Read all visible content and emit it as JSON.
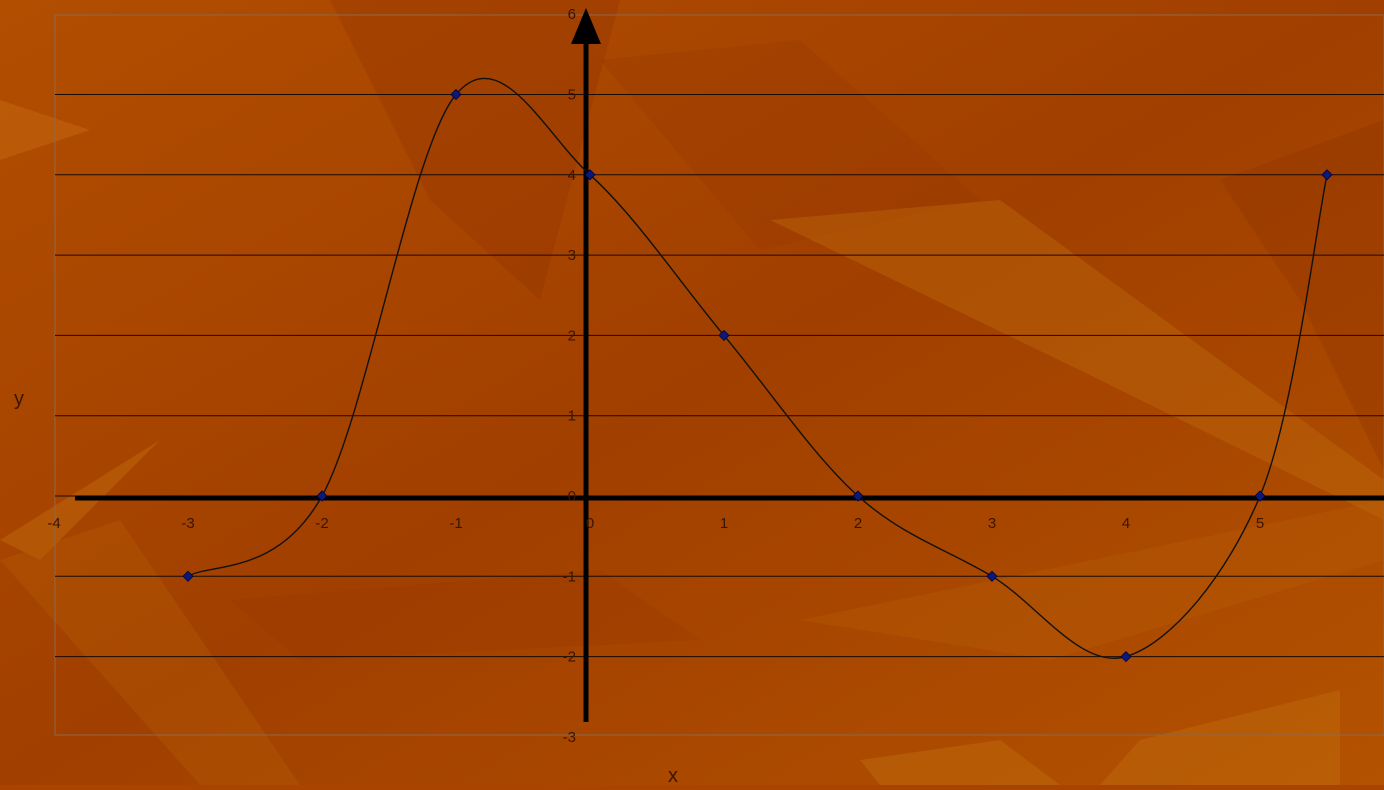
{
  "chart_data": {
    "type": "scatter",
    "title": "",
    "xlabel": "x",
    "ylabel": "y",
    "xlim": [
      -4,
      5.5
    ],
    "ylim": [
      -3,
      6
    ],
    "x_ticks": [
      -4,
      -3,
      -2,
      -1,
      0,
      1,
      2,
      3,
      4,
      5
    ],
    "y_ticks": [
      -3,
      -2,
      -1,
      0,
      1,
      2,
      3,
      4,
      5,
      6
    ],
    "grid": "horizontal",
    "smoothed_line": true,
    "series": [
      {
        "x": [
          -3,
          -2,
          -1,
          0,
          1,
          2,
          3,
          4,
          5,
          5.5
        ],
        "y": [
          -1,
          0,
          5,
          4,
          2,
          0,
          -1,
          -2,
          0,
          4
        ]
      }
    ],
    "colors": {
      "marker": "#0a1a7a",
      "line": "#111111",
      "grid": "#1a0a00",
      "axis": "#000000",
      "tick_text": "#3a1500",
      "background": "#a84300"
    }
  }
}
